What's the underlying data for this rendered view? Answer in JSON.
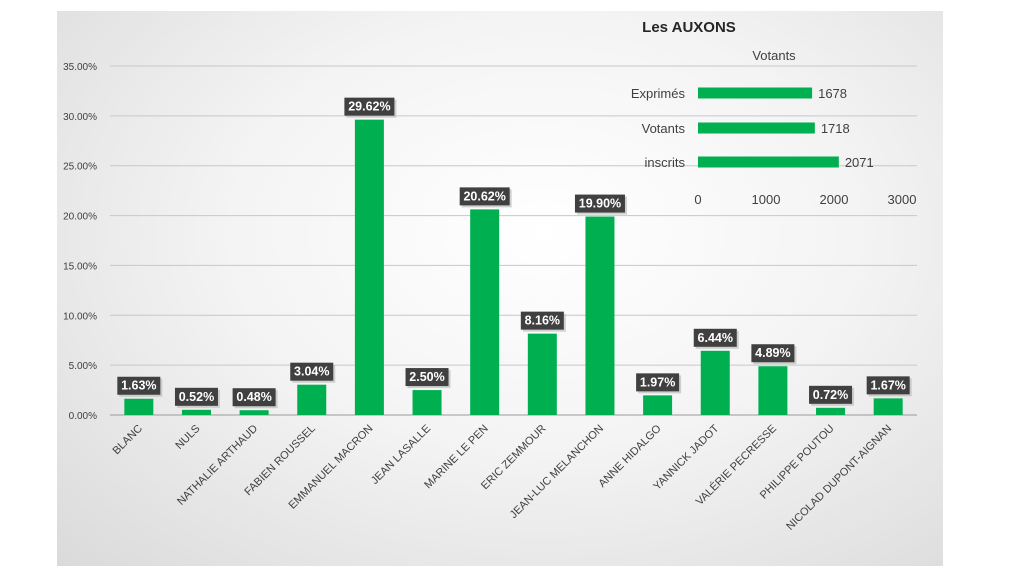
{
  "chart_data": [
    {
      "type": "bar",
      "title": "Les AUXONS",
      "categories": [
        "BLANC",
        "NULS",
        "NATHALIE ARTHAUD",
        "FABIEN ROUSSEL",
        "EMMANUEL MACRON",
        "JEAN LASALLE",
        "MARINE LE PEN",
        "ERIC ZEMMOUR",
        "JEAN-LUC MELANCHON",
        "ANNE HIDALGO",
        "YANNICK JADOT",
        "VALÉRIE PECRESSE",
        "PHILIPPE POUTOU",
        "NICOLAD DUPONT-AIGNAN"
      ],
      "values": [
        1.63,
        0.52,
        0.48,
        3.04,
        29.62,
        2.5,
        20.62,
        8.16,
        19.9,
        1.97,
        6.44,
        4.89,
        0.72,
        1.67
      ],
      "data_labels": [
        "1.63%",
        "0.52%",
        "0.48%",
        "3.04%",
        "29.62%",
        "2.50%",
        "20.62%",
        "8.16%",
        "19.90%",
        "1.97%",
        "6.44%",
        "4.89%",
        "0.72%",
        "1.67%"
      ],
      "ylim": [
        0,
        35
      ],
      "yticks": [
        "0.00%",
        "5.00%",
        "10.00%",
        "15.00%",
        "20.00%",
        "25.00%",
        "30.00%",
        "35.00%"
      ],
      "grid": true,
      "bar_color": "#00b050",
      "label_bg": "#404040"
    },
    {
      "type": "bar",
      "orientation": "horizontal",
      "title": "Votants",
      "categories": [
        "Exprimés",
        "Votants",
        "inscrits"
      ],
      "values": [
        1678,
        1718,
        2071
      ],
      "data_labels": [
        "1678",
        "1718",
        "2071"
      ],
      "xlim": [
        0,
        3000
      ],
      "xticks": [
        "0",
        "1000",
        "2000",
        "3000"
      ],
      "bar_color": "#00b050"
    }
  ]
}
